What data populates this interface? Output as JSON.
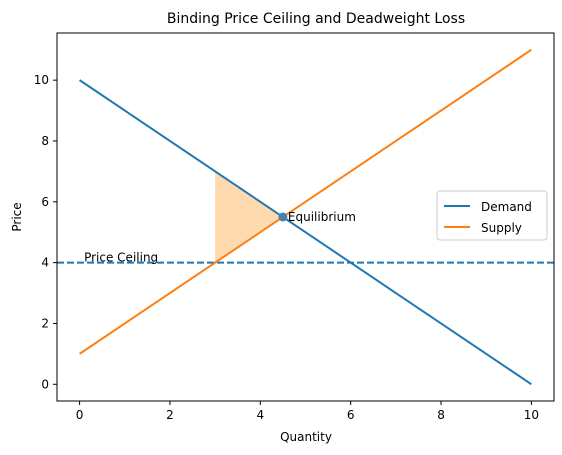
{
  "chart_data": {
    "type": "line",
    "title": "Binding Price Ceiling and Deadweight Loss",
    "xlabel": "Quantity",
    "ylabel": "Price",
    "xlim": [
      -0.5,
      10.5
    ],
    "ylim": [
      -0.55,
      11.55
    ],
    "xticks": [
      0,
      2,
      4,
      6,
      8,
      10
    ],
    "yticks": [
      0,
      2,
      4,
      6,
      8,
      10
    ],
    "grid": false,
    "legend_position": "center-right",
    "series": [
      {
        "name": "Demand",
        "color": "#1f77b4",
        "x": [
          0,
          10
        ],
        "y": [
          10,
          0
        ]
      },
      {
        "name": "Supply",
        "color": "#ff7f0e",
        "x": [
          0,
          10
        ],
        "y": [
          1,
          11
        ]
      }
    ],
    "price_ceiling": {
      "value": 4,
      "color": "#1f77b4",
      "style": "dashed",
      "label": "Price Ceiling",
      "label_x": 0.1
    },
    "equilibrium": {
      "x": 4.5,
      "y": 5.5,
      "label": "Equilibrium"
    },
    "deadweight_loss": {
      "color": "#ffdab0",
      "vertices": [
        [
          3,
          7
        ],
        [
          4.5,
          5.5
        ],
        [
          3,
          4
        ]
      ]
    }
  }
}
